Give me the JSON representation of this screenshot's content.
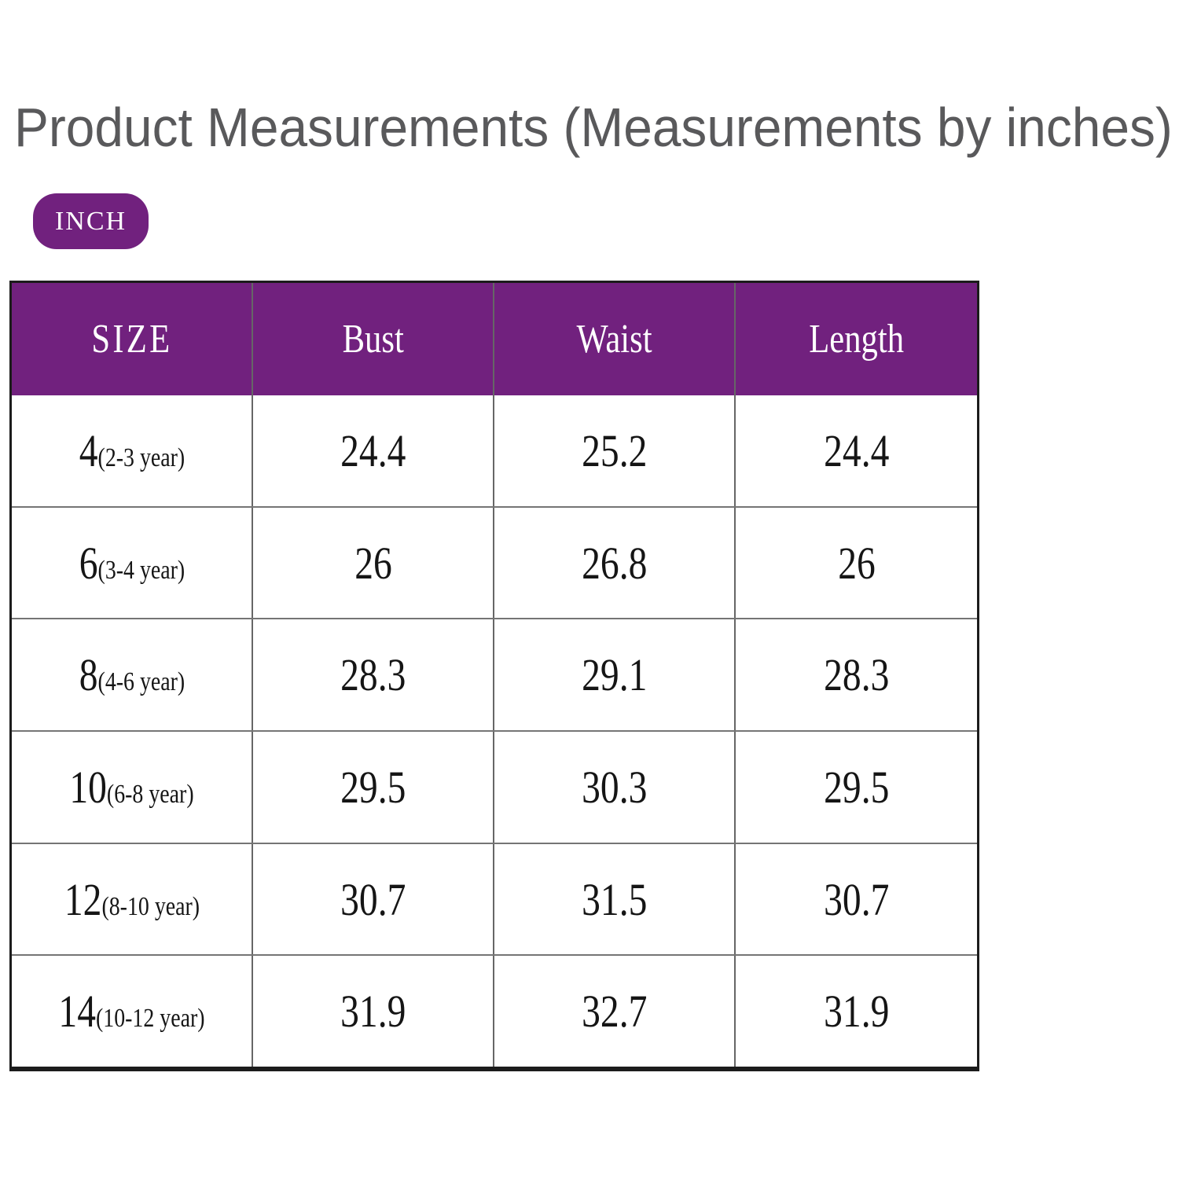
{
  "title": "Product Measurements (Measurements by inches)",
  "unit_badge": "INCH",
  "colors": {
    "accent_purple": "#71217E",
    "title_gray": "#59595B",
    "grid_line": "#6F6F6F",
    "text_black": "#151515"
  },
  "table": {
    "headers": [
      "SIZE",
      "Bust",
      "Waist",
      "Length"
    ],
    "rows": [
      {
        "size": "4",
        "age": "(2-3 year)",
        "bust": "24.4",
        "waist": "25.2",
        "length": "24.4"
      },
      {
        "size": "6",
        "age": "(3-4 year)",
        "bust": "26",
        "waist": "26.8",
        "length": "26"
      },
      {
        "size": "8",
        "age": "(4-6 year)",
        "bust": "28.3",
        "waist": "29.1",
        "length": "28.3"
      },
      {
        "size": "10",
        "age": "(6-8 year)",
        "bust": "29.5",
        "waist": "30.3",
        "length": "29.5"
      },
      {
        "size": "12",
        "age": "(8-10 year)",
        "bust": "30.7",
        "waist": "31.5",
        "length": "30.7"
      },
      {
        "size": "14",
        "age": "(10-12 year)",
        "bust": "31.9",
        "waist": "32.7",
        "length": "31.9"
      }
    ]
  }
}
